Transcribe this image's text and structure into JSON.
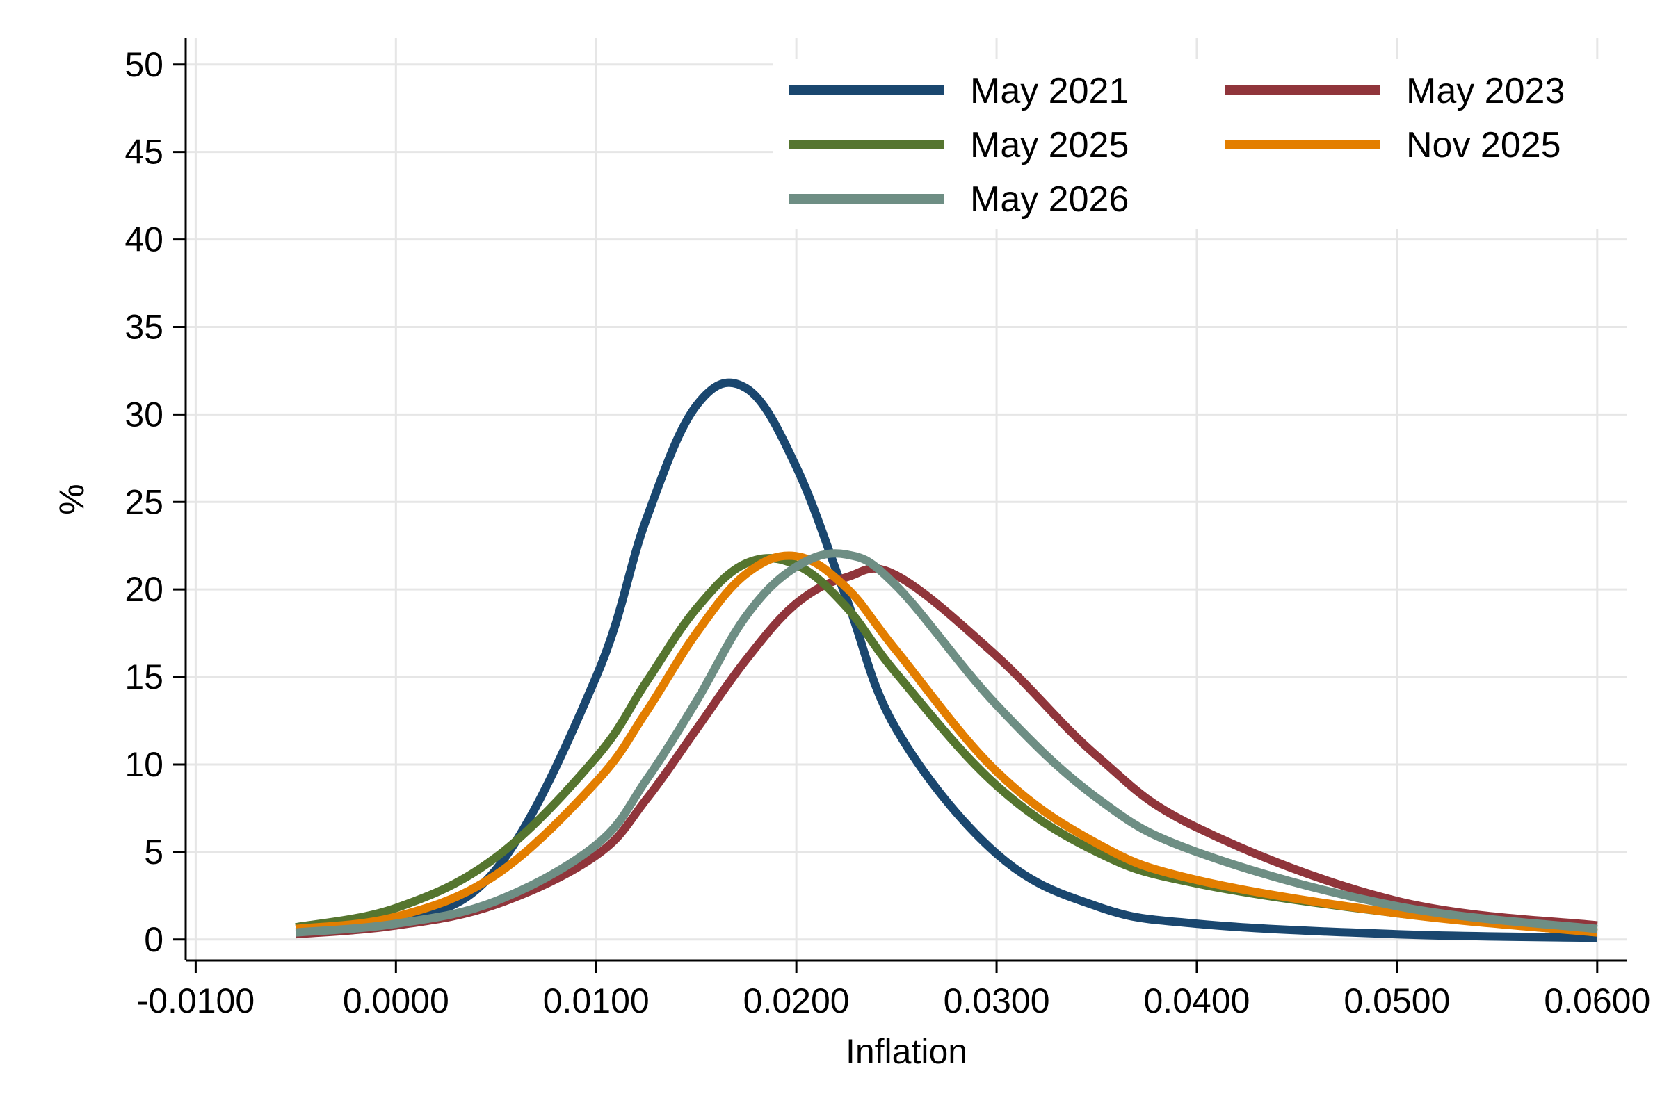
{
  "chart_data": {
    "type": "line",
    "title": "",
    "xlabel": "Inflation",
    "ylabel": "%",
    "xlim": [
      -0.0105,
      0.0615
    ],
    "ylim": [
      -1.2,
      51.5
    ],
    "x_ticks": [
      -0.01,
      0.0,
      0.01,
      0.02,
      0.03,
      0.04,
      0.05,
      0.06
    ],
    "x_tick_labels": [
      "-0.0100",
      "0.0000",
      "0.0100",
      "0.0200",
      "0.0300",
      "0.0400",
      "0.0500",
      "0.0600"
    ],
    "y_ticks": [
      0,
      5,
      10,
      15,
      20,
      25,
      30,
      35,
      40,
      45,
      50
    ],
    "y_tick_labels": [
      "0",
      "5",
      "10",
      "15",
      "20",
      "25",
      "30",
      "35",
      "40",
      "45",
      "50"
    ],
    "grid": true,
    "legend_position": "top-right",
    "x": [
      -0.005,
      0.0,
      0.005,
      0.01,
      0.0125,
      0.015,
      0.0175,
      0.02,
      0.0225,
      0.025,
      0.03,
      0.035,
      0.04,
      0.05,
      0.06
    ],
    "series": [
      {
        "name": "May 2021",
        "color": "#1a476f",
        "values": [
          0.4,
          1.0,
          4.0,
          15.0,
          24.0,
          30.5,
          31.5,
          27.0,
          19.5,
          12.0,
          4.9,
          1.9,
          0.9,
          0.3,
          0.1
        ]
      },
      {
        "name": "May 2023",
        "color": "#90353b",
        "values": [
          0.3,
          0.8,
          2.0,
          4.8,
          8.0,
          12.0,
          16.0,
          19.2,
          20.7,
          20.8,
          16.2,
          10.5,
          6.4,
          2.2,
          0.8
        ]
      },
      {
        "name": "May 2025",
        "color": "#55752f",
        "values": [
          0.7,
          1.8,
          4.7,
          10.4,
          14.7,
          18.9,
          21.5,
          21.4,
          19.0,
          15.2,
          8.8,
          5.0,
          3.2,
          1.5,
          0.4
        ]
      },
      {
        "name": "Nov 2025",
        "color": "#e37e00",
        "values": [
          0.6,
          1.3,
          3.7,
          9.0,
          13.0,
          17.5,
          20.9,
          21.9,
          20.1,
          16.5,
          9.6,
          5.5,
          3.4,
          1.5,
          0.4
        ]
      },
      {
        "name": "May 2026",
        "color": "#6e8e84",
        "values": [
          0.4,
          0.9,
          2.2,
          5.4,
          9.1,
          13.6,
          18.5,
          21.3,
          22.0,
          20.2,
          13.4,
          8.1,
          5.0,
          1.9,
          0.6
        ]
      }
    ]
  }
}
